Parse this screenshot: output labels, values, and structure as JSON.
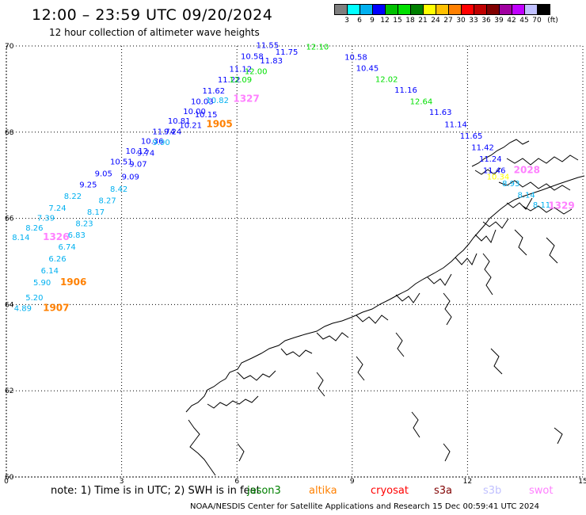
{
  "header": {
    "title": "12:00 – 23:59 UTC 09/20/2024",
    "subtitle": "12 hour collection of altimeter wave heights"
  },
  "colorbar": {
    "colors": [
      "#7f7f7f",
      "#00ffff",
      "#00b0f0",
      "#0000ff",
      "#00c000",
      "#00e000",
      "#008000",
      "#ffff00",
      "#ffc000",
      "#ff8000",
      "#ff0000",
      "#c00000",
      "#800000",
      "#a000a0",
      "#c000ff",
      "#c0c0ff",
      "#000000"
    ],
    "labels": [
      "3",
      "6",
      "9",
      "12",
      "15",
      "18",
      "21",
      "24",
      "27",
      "30",
      "33",
      "36",
      "39",
      "42",
      "45",
      "70",
      "(ft)"
    ]
  },
  "map": {
    "lon_range": [
      0,
      15
    ],
    "lat_range": [
      60,
      70
    ],
    "lon_ticks": [
      "0",
      "3",
      "6",
      "9",
      "12",
      "15"
    ],
    "lat_ticks": [
      "60",
      "62",
      "64",
      "66",
      "68",
      "70"
    ],
    "grid": "dotted"
  },
  "wave_labels": [
    {
      "t": "11.55",
      "lon": 6.5,
      "lat": 69.95,
      "c": "#0000ff"
    },
    {
      "t": "11.75",
      "lon": 7.0,
      "lat": 69.8,
      "c": "#0000ff"
    },
    {
      "t": "12.10",
      "lon": 7.8,
      "lat": 69.92,
      "c": "#00e000"
    },
    {
      "t": "10.58",
      "lon": 6.1,
      "lat": 69.7,
      "c": "#0000ff"
    },
    {
      "t": "11.83",
      "lon": 6.6,
      "lat": 69.6,
      "c": "#0000ff"
    },
    {
      "t": "10.58",
      "lon": 8.8,
      "lat": 69.68,
      "c": "#0000ff"
    },
    {
      "t": "11.12",
      "lon": 5.8,
      "lat": 69.4,
      "c": "#0000ff"
    },
    {
      "t": "12.00",
      "lon": 6.2,
      "lat": 69.35,
      "c": "#00e000"
    },
    {
      "t": "10.45",
      "lon": 9.1,
      "lat": 69.42,
      "c": "#0000ff"
    },
    {
      "t": "11.22",
      "lon": 5.5,
      "lat": 69.15,
      "c": "#0000ff"
    },
    {
      "t": "12.09",
      "lon": 5.8,
      "lat": 69.15,
      "c": "#00e000"
    },
    {
      "t": "12.02",
      "lon": 9.6,
      "lat": 69.16,
      "c": "#00e000"
    },
    {
      "t": "11.62",
      "lon": 5.1,
      "lat": 68.9,
      "c": "#0000ff"
    },
    {
      "t": "11.16",
      "lon": 10.1,
      "lat": 68.92,
      "c": "#0000ff"
    },
    {
      "t": "10.82",
      "lon": 5.2,
      "lat": 68.68,
      "c": "#00b0f0"
    },
    {
      "t": "10.03",
      "lon": 4.8,
      "lat": 68.65,
      "c": "#0000ff"
    },
    {
      "t": "1327",
      "lon": 5.9,
      "lat": 68.7,
      "c": "#ff80ff",
      "big": true
    },
    {
      "t": "12.64",
      "lon": 10.5,
      "lat": 68.65,
      "c": "#00e000"
    },
    {
      "t": "10.00",
      "lon": 4.6,
      "lat": 68.42,
      "c": "#0000ff"
    },
    {
      "t": "10.15",
      "lon": 4.9,
      "lat": 68.35,
      "c": "#0000ff"
    },
    {
      "t": "11.63",
      "lon": 11.0,
      "lat": 68.4,
      "c": "#0000ff"
    },
    {
      "t": "10.81",
      "lon": 4.2,
      "lat": 68.2,
      "c": "#0000ff"
    },
    {
      "t": "10.21",
      "lon": 4.5,
      "lat": 68.1,
      "c": "#0000ff"
    },
    {
      "t": "1905",
      "lon": 5.2,
      "lat": 68.12,
      "c": "#ff8000",
      "big": true
    },
    {
      "t": "11.14",
      "lon": 11.4,
      "lat": 68.12,
      "c": "#0000ff"
    },
    {
      "t": "11.74",
      "lon": 3.8,
      "lat": 67.95,
      "c": "#0000ff"
    },
    {
      "t": "9.24",
      "lon": 4.1,
      "lat": 67.95,
      "c": "#0000ff"
    },
    {
      "t": "11.65",
      "lon": 11.8,
      "lat": 67.85,
      "c": "#0000ff"
    },
    {
      "t": "10.36",
      "lon": 3.5,
      "lat": 67.73,
      "c": "#0000ff"
    },
    {
      "t": "9.90",
      "lon": 3.8,
      "lat": 67.7,
      "c": "#00b0f0"
    },
    {
      "t": "11.42",
      "lon": 12.1,
      "lat": 67.58,
      "c": "#0000ff"
    },
    {
      "t": "10.12",
      "lon": 3.1,
      "lat": 67.5,
      "c": "#0000ff"
    },
    {
      "t": "9.74",
      "lon": 3.4,
      "lat": 67.45,
      "c": "#0000ff"
    },
    {
      "t": "11.24",
      "lon": 12.3,
      "lat": 67.32,
      "c": "#0000ff"
    },
    {
      "t": "10.51",
      "lon": 2.7,
      "lat": 67.25,
      "c": "#0000ff"
    },
    {
      "t": "9.07",
      "lon": 3.2,
      "lat": 67.2,
      "c": "#0000ff"
    },
    {
      "t": "11.46",
      "lon": 12.4,
      "lat": 67.05,
      "c": "#0000ff"
    },
    {
      "t": "10.34",
      "lon": 12.5,
      "lat": 66.9,
      "c": "#ffff00"
    },
    {
      "t": "2028",
      "lon": 13.2,
      "lat": 67.05,
      "c": "#ff80ff",
      "big": true
    },
    {
      "t": "9.05",
      "lon": 2.3,
      "lat": 66.98,
      "c": "#0000ff"
    },
    {
      "t": "9.09",
      "lon": 3.0,
      "lat": 66.9,
      "c": "#0000ff"
    },
    {
      "t": "8.93",
      "lon": 12.9,
      "lat": 66.75,
      "c": "#00b0f0"
    },
    {
      "t": "9.25",
      "lon": 1.9,
      "lat": 66.72,
      "c": "#0000ff"
    },
    {
      "t": "8.42",
      "lon": 2.7,
      "lat": 66.62,
      "c": "#00b0f0"
    },
    {
      "t": "8.14",
      "lon": 13.3,
      "lat": 66.48,
      "c": "#00b0f0"
    },
    {
      "t": "8.22",
      "lon": 1.5,
      "lat": 66.45,
      "c": "#00b0f0"
    },
    {
      "t": "8.27",
      "lon": 2.4,
      "lat": 66.35,
      "c": "#00b0f0"
    },
    {
      "t": "8.11",
      "lon": 13.7,
      "lat": 66.25,
      "c": "#00b0f0"
    },
    {
      "t": "1329",
      "lon": 14.1,
      "lat": 66.22,
      "c": "#ff80ff",
      "big": true
    },
    {
      "t": "7.24",
      "lon": 1.1,
      "lat": 66.18,
      "c": "#00b0f0"
    },
    {
      "t": "8.17",
      "lon": 2.1,
      "lat": 66.08,
      "c": "#00b0f0"
    },
    {
      "t": "7.39",
      "lon": 0.8,
      "lat": 65.95,
      "c": "#00b0f0"
    },
    {
      "t": "8.23",
      "lon": 1.8,
      "lat": 65.82,
      "c": "#00b0f0"
    },
    {
      "t": "8.26",
      "lon": 0.5,
      "lat": 65.72,
      "c": "#00b0f0"
    },
    {
      "t": "8.14",
      "lon": 0.15,
      "lat": 65.5,
      "c": "#00b0f0"
    },
    {
      "t": "1326",
      "lon": 0.95,
      "lat": 65.5,
      "c": "#ff80ff",
      "big": true
    },
    {
      "t": "6.83",
      "lon": 1.6,
      "lat": 65.55,
      "c": "#00b0f0"
    },
    {
      "t": "6.74",
      "lon": 1.35,
      "lat": 65.28,
      "c": "#00b0f0"
    },
    {
      "t": "6.26",
      "lon": 1.1,
      "lat": 65.0,
      "c": "#00b0f0"
    },
    {
      "t": "6.14",
      "lon": 0.9,
      "lat": 64.72,
      "c": "#00b0f0"
    },
    {
      "t": "5.90",
      "lon": 0.7,
      "lat": 64.45,
      "c": "#00b0f0"
    },
    {
      "t": "1906",
      "lon": 1.4,
      "lat": 64.45,
      "c": "#ff8000",
      "big": true
    },
    {
      "t": "5.20",
      "lon": 0.5,
      "lat": 64.1,
      "c": "#00b0f0"
    },
    {
      "t": "4.89",
      "lon": 0.2,
      "lat": 63.85,
      "c": "#00b0f0"
    },
    {
      "t": "1907",
      "lon": 0.95,
      "lat": 63.85,
      "c": "#ff8000",
      "big": true
    }
  ],
  "note": {
    "text": "note:  1) Time is in UTC;  2) SWH is in feet"
  },
  "legend": [
    {
      "label": "jason3",
      "color": "#008000"
    },
    {
      "label": "altika",
      "color": "#ff8000"
    },
    {
      "label": "cryosat",
      "color": "#ff0000"
    },
    {
      "label": "s3a",
      "color": "#800000"
    },
    {
      "label": "s3b",
      "color": "#c0c0ff"
    },
    {
      "label": "swot",
      "color": "#ff80ff"
    }
  ],
  "credit": "NOAA/NESDIS Center for Satellite Applications and Research    15 Dec 00:59:41 UTC 2024"
}
